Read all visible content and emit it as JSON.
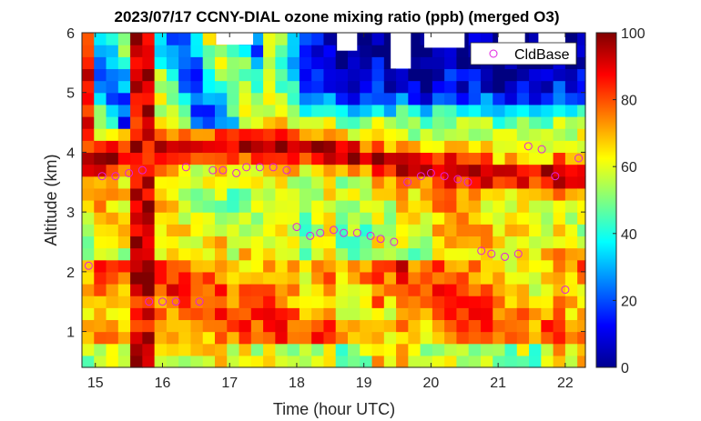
{
  "chart_data": {
    "type": "heatmap",
    "title": "2023/07/17 CCNY-DIAL ozone mixing ratio (ppb) (merged O3)",
    "xlabel": "Time (hour UTC)",
    "ylabel": "Altitude (km)",
    "xlim": [
      14.8,
      22.3
    ],
    "ylim": [
      0.4,
      6.0
    ],
    "x_ticks": [
      "15",
      "16",
      "17",
      "18",
      "19",
      "20",
      "21",
      "22"
    ],
    "y_ticks": [
      "1",
      "2",
      "3",
      "4",
      "5",
      "6"
    ],
    "colorbar": {
      "min": 0,
      "max": 100,
      "ticks": [
        "0",
        "20",
        "40",
        "60",
        "80",
        "100"
      ],
      "colormap": "jet"
    },
    "legend": {
      "label": "CldBase",
      "position": "top-right",
      "marker": "circle",
      "color": "#e020e0"
    },
    "time_start": 14.8,
    "time_step": 0.18,
    "n_columns": 42,
    "profile_model": [
      {
        "layer": "surface",
        "altitude_km": [
          0.4,
          0.9
        ],
        "ozone_ppb": [
          45,
          70
        ]
      },
      {
        "layer": "boundary_layer",
        "altitude_km": [
          0.9,
          2.2
        ],
        "ozone_ppb": [
          65,
          85
        ]
      },
      {
        "layer": "mixing",
        "altitude_km": [
          2.2,
          3.4
        ],
        "ozone_ppb": [
          50,
          72
        ]
      },
      {
        "layer": "elevated_peak",
        "altitude_km": [
          3.5,
          4.2
        ],
        "ozone_ppb": [
          80,
          98
        ]
      },
      {
        "layer": "upper",
        "altitude_km": [
          4.4,
          6.0
        ],
        "ozone_ppb": [
          5,
          60
        ]
      }
    ],
    "cloud_base": [
      {
        "t": 14.9,
        "alt": 2.1
      },
      {
        "t": 15.1,
        "alt": 3.6
      },
      {
        "t": 15.3,
        "alt": 3.6
      },
      {
        "t": 15.5,
        "alt": 3.65
      },
      {
        "t": 15.7,
        "alt": 3.7
      },
      {
        "t": 15.8,
        "alt": 1.5
      },
      {
        "t": 16.0,
        "alt": 1.5
      },
      {
        "t": 16.2,
        "alt": 1.5
      },
      {
        "t": 16.35,
        "alt": 3.75
      },
      {
        "t": 16.55,
        "alt": 1.5
      },
      {
        "t": 16.75,
        "alt": 3.7
      },
      {
        "t": 16.9,
        "alt": 3.7
      },
      {
        "t": 17.1,
        "alt": 3.65
      },
      {
        "t": 17.25,
        "alt": 3.75
      },
      {
        "t": 17.45,
        "alt": 3.75
      },
      {
        "t": 17.65,
        "alt": 3.75
      },
      {
        "t": 17.85,
        "alt": 3.7
      },
      {
        "t": 18.0,
        "alt": 2.75
      },
      {
        "t": 18.2,
        "alt": 2.6
      },
      {
        "t": 18.35,
        "alt": 2.65
      },
      {
        "t": 18.55,
        "alt": 2.7
      },
      {
        "t": 18.7,
        "alt": 2.65
      },
      {
        "t": 18.9,
        "alt": 2.65
      },
      {
        "t": 19.1,
        "alt": 2.6
      },
      {
        "t": 19.25,
        "alt": 2.55
      },
      {
        "t": 19.45,
        "alt": 2.5
      },
      {
        "t": 19.65,
        "alt": 3.5
      },
      {
        "t": 19.85,
        "alt": 3.6
      },
      {
        "t": 20.0,
        "alt": 3.65
      },
      {
        "t": 20.2,
        "alt": 3.6
      },
      {
        "t": 20.4,
        "alt": 3.55
      },
      {
        "t": 20.55,
        "alt": 3.5
      },
      {
        "t": 20.75,
        "alt": 2.35
      },
      {
        "t": 20.9,
        "alt": 2.3
      },
      {
        "t": 21.1,
        "alt": 2.25
      },
      {
        "t": 21.3,
        "alt": 2.3
      },
      {
        "t": 21.45,
        "alt": 4.1
      },
      {
        "t": 21.65,
        "alt": 4.05
      },
      {
        "t": 21.85,
        "alt": 3.6
      },
      {
        "t": 22.0,
        "alt": 1.7
      },
      {
        "t": 22.2,
        "alt": 3.9
      }
    ],
    "missing_gaps": [
      {
        "t0": 16.8,
        "t1": 17.35,
        "alt_min": 5.8
      },
      {
        "t0": 18.6,
        "t1": 18.9,
        "alt_min": 5.7
      },
      {
        "t0": 19.4,
        "t1": 19.7,
        "alt_min": 5.4
      },
      {
        "t0": 19.9,
        "t1": 20.5,
        "alt_min": 5.75
      },
      {
        "t0": 21.0,
        "t1": 21.4,
        "alt_min": 5.8
      },
      {
        "t0": 21.6,
        "t1": 22.0,
        "alt_min": 5.55
      }
    ]
  }
}
